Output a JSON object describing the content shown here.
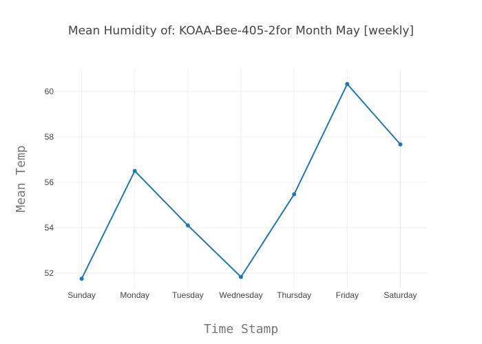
{
  "chart_data": {
    "type": "line",
    "title": "Mean Humidity of: KOAA-Bee-405-2for Month May [weekly]",
    "xlabel": "Time Stamp",
    "ylabel": "Mean Temp",
    "categories": [
      "Sunday",
      "Monday",
      "Tuesday",
      "Wednesday",
      "Thursday",
      "Friday",
      "Saturday"
    ],
    "series": [
      {
        "values": [
          51.75,
          56.5,
          54.1,
          51.83,
          55.47,
          60.33,
          57.67
        ],
        "color": "#1f77b4"
      }
    ],
    "yticks": [
      52,
      54,
      56,
      58,
      60
    ],
    "ylim": [
      51.3,
      61
    ],
    "grid": true,
    "legend": "none"
  }
}
